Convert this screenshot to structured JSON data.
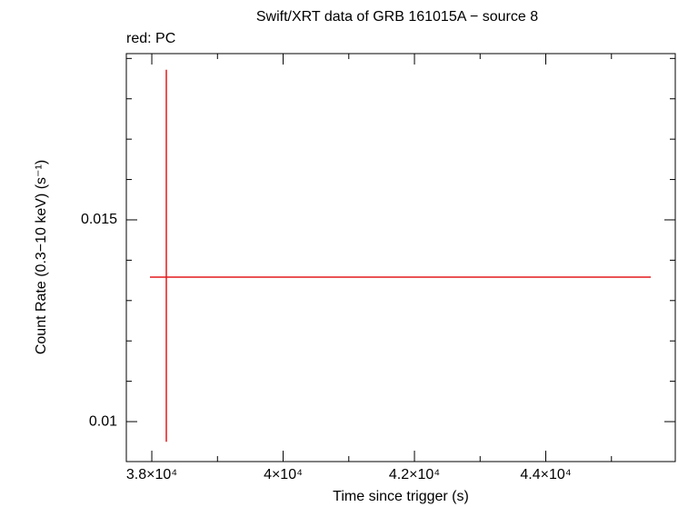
{
  "chart_data": {
    "type": "errorbar",
    "title": "Swift/XRT data of GRB 161015A − source 8",
    "subtitle": "red: PC",
    "x_label": "Time since trigger (s)",
    "y_label": "Count Rate (0.3−10 keV) (s⁻¹)",
    "series": [
      {
        "name": "PC",
        "color": "#e41a1c",
        "x": [
          38221
        ],
        "values": [
          0.01358
        ],
        "xerr_minus": [
          249
        ],
        "xerr_plus": [
          7378
        ],
        "yerr_minus": [
          0.00408
        ],
        "yerr_plus": [
          0.00514
        ]
      }
    ],
    "xlim": [
      37612,
      45972
    ],
    "xticks": [
      {
        "value": 38000,
        "label": "3.8×10⁴"
      },
      {
        "value": 40000,
        "label": "4×10⁴"
      },
      {
        "value": 42000,
        "label": "4.2×10⁴"
      },
      {
        "value": 44000,
        "label": "4.4×10⁴"
      }
    ],
    "xticks_minor": [
      39000,
      41000,
      43000,
      45000
    ],
    "ylim": [
      0.00901,
      0.01912
    ],
    "yticks": [
      0.01,
      0.015
    ],
    "yticks_minor": [
      0.011,
      0.012,
      0.013,
      0.014,
      0.016,
      0.017,
      0.018,
      0.019
    ]
  }
}
